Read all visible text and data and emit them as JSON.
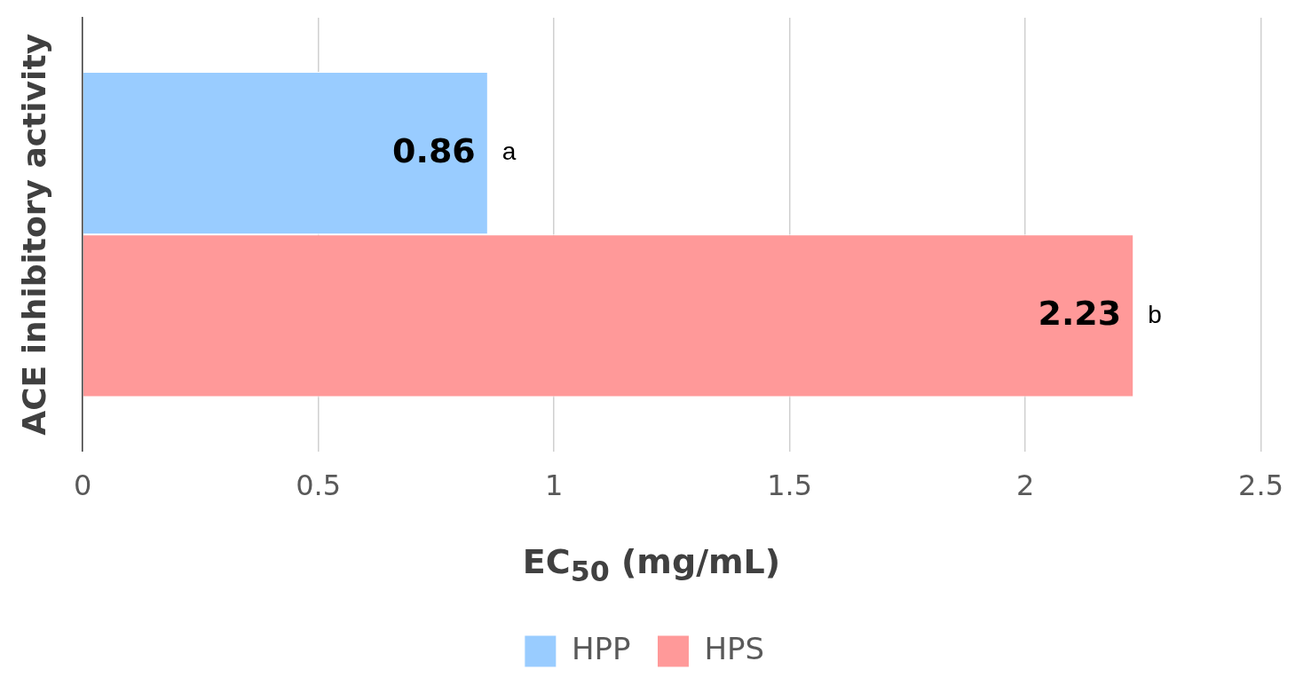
{
  "chart_data": {
    "type": "bar",
    "orientation": "horizontal",
    "categories": [
      null
    ],
    "series": [
      {
        "name": "HPP",
        "color": "#99ccff",
        "values": [
          0.86
        ]
      },
      {
        "name": "HPS",
        "color": "#ff9999",
        "values": [
          2.23
        ]
      }
    ],
    "xlabel": "EC$_{50}$ (mg/mL)",
    "ylabel": "ACE inhibitory activity",
    "xlim": [
      0,
      2.5
    ],
    "xticks": [
      0,
      0.5,
      1,
      1.5,
      2,
      2.5
    ],
    "grid": "x",
    "legend": "bottom",
    "data_labels": true,
    "annotations": [
      {
        "text": "a",
        "x": 0.86
      },
      {
        "text": "b",
        "x": 2.23
      }
    ]
  }
}
